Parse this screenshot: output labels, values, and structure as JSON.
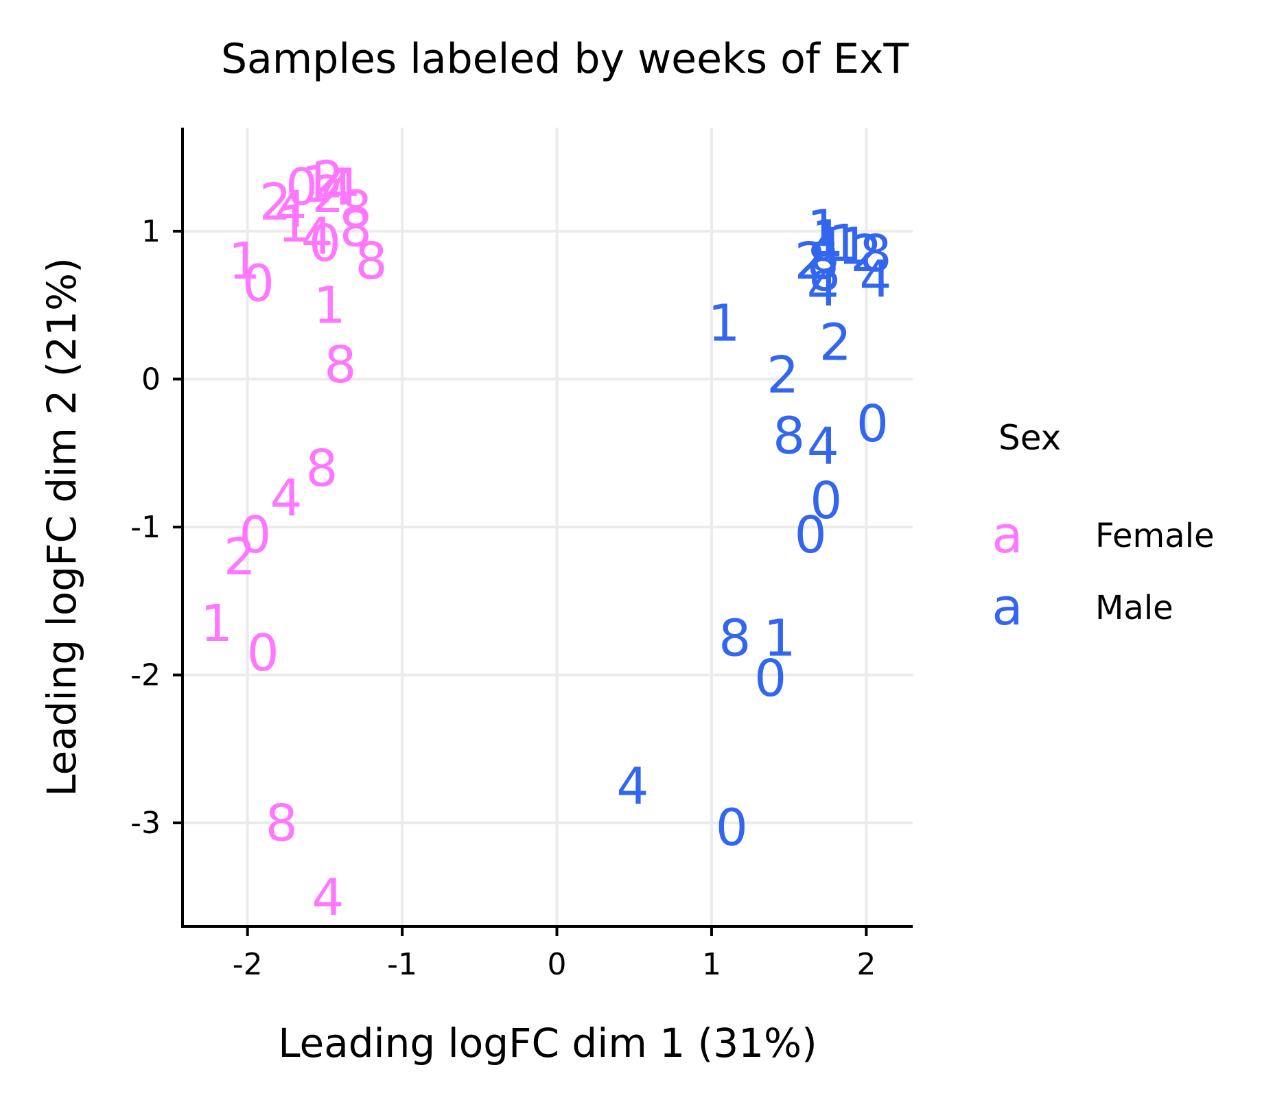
{
  "chart_data": {
    "type": "scatter",
    "title": "Samples labeled by weeks of ExT",
    "xlabel": "Leading logFC dim 1 (31%)",
    "ylabel": "Leading logFC dim 2 (21%)",
    "xlim": [
      -2.42,
      2.3
    ],
    "ylim": [
      -3.7,
      1.7
    ],
    "x_ticks": [
      -2,
      -1,
      0,
      1,
      2
    ],
    "y_ticks": [
      -3,
      -2,
      -1,
      0,
      1
    ],
    "x_tick_labels": [
      "-2",
      "-1",
      "0",
      "1",
      "2"
    ],
    "y_tick_labels": [
      "-3",
      "-2",
      "-1",
      "0",
      "1"
    ],
    "grid": true,
    "legend": {
      "title": "Sex",
      "position": "right",
      "key_glyph": "a",
      "entries": [
        "Female",
        "Male"
      ]
    },
    "series": [
      {
        "name": "Female",
        "color": "#FF77FF",
        "points": [
          {
            "x": -1.65,
            "y": 1.3,
            "label": "0"
          },
          {
            "x": -1.55,
            "y": 1.32,
            "label": "1"
          },
          {
            "x": -1.48,
            "y": 1.35,
            "label": "2"
          },
          {
            "x": -1.42,
            "y": 1.3,
            "label": "4"
          },
          {
            "x": -1.48,
            "y": 1.25,
            "label": "2"
          },
          {
            "x": -1.38,
            "y": 1.3,
            "label": "4"
          },
          {
            "x": -1.82,
            "y": 1.2,
            "label": "2"
          },
          {
            "x": -1.72,
            "y": 1.15,
            "label": "4"
          },
          {
            "x": -1.7,
            "y": 1.05,
            "label": "1"
          },
          {
            "x": -1.3,
            "y": 1.15,
            "label": "8"
          },
          {
            "x": -1.55,
            "y": 0.97,
            "label": "4"
          },
          {
            "x": -1.5,
            "y": 0.92,
            "label": "0"
          },
          {
            "x": -1.3,
            "y": 1.02,
            "label": "8"
          },
          {
            "x": -1.2,
            "y": 0.8,
            "label": "8"
          },
          {
            "x": -2.02,
            "y": 0.8,
            "label": "1"
          },
          {
            "x": -1.93,
            "y": 0.65,
            "label": "0"
          },
          {
            "x": -1.47,
            "y": 0.5,
            "label": "1"
          },
          {
            "x": -1.4,
            "y": 0.1,
            "label": "8"
          },
          {
            "x": -1.52,
            "y": -0.6,
            "label": "8"
          },
          {
            "x": -1.75,
            "y": -0.8,
            "label": "4"
          },
          {
            "x": -1.95,
            "y": -1.05,
            "label": "0"
          },
          {
            "x": -2.05,
            "y": -1.2,
            "label": "2"
          },
          {
            "x": -2.2,
            "y": -1.65,
            "label": "1"
          },
          {
            "x": -1.9,
            "y": -1.85,
            "label": "0"
          },
          {
            "x": -1.78,
            "y": -3.0,
            "label": "8"
          },
          {
            "x": -1.48,
            "y": -3.5,
            "label": "4"
          }
        ]
      },
      {
        "name": "Male",
        "color": "#3366EE",
        "points": [
          {
            "x": 1.72,
            "y": 1.02,
            "label": "1"
          },
          {
            "x": 1.75,
            "y": 0.95,
            "label": "1"
          },
          {
            "x": 1.74,
            "y": 0.9,
            "label": "4"
          },
          {
            "x": 1.86,
            "y": 0.92,
            "label": "1"
          },
          {
            "x": 1.92,
            "y": 0.9,
            "label": "1"
          },
          {
            "x": 2.0,
            "y": 0.85,
            "label": "2"
          },
          {
            "x": 2.06,
            "y": 0.85,
            "label": "8"
          },
          {
            "x": 1.64,
            "y": 0.8,
            "label": "2"
          },
          {
            "x": 1.72,
            "y": 0.8,
            "label": "8"
          },
          {
            "x": 1.73,
            "y": 0.72,
            "label": "8"
          },
          {
            "x": 1.72,
            "y": 0.62,
            "label": "4"
          },
          {
            "x": 2.06,
            "y": 0.68,
            "label": "4"
          },
          {
            "x": 1.08,
            "y": 0.38,
            "label": "1"
          },
          {
            "x": 1.8,
            "y": 0.25,
            "label": "2"
          },
          {
            "x": 1.46,
            "y": 0.03,
            "label": "2"
          },
          {
            "x": 1.5,
            "y": -0.38,
            "label": "8"
          },
          {
            "x": 1.72,
            "y": -0.45,
            "label": "4"
          },
          {
            "x": 2.04,
            "y": -0.3,
            "label": "0"
          },
          {
            "x": 1.74,
            "y": -0.82,
            "label": "0"
          },
          {
            "x": 1.64,
            "y": -1.05,
            "label": "0"
          },
          {
            "x": 1.15,
            "y": -1.75,
            "label": "8"
          },
          {
            "x": 1.44,
            "y": -1.75,
            "label": "1"
          },
          {
            "x": 1.38,
            "y": -2.02,
            "label": "0"
          },
          {
            "x": 0.49,
            "y": -2.75,
            "label": "4"
          },
          {
            "x": 1.13,
            "y": -3.03,
            "label": "0"
          }
        ]
      }
    ]
  }
}
